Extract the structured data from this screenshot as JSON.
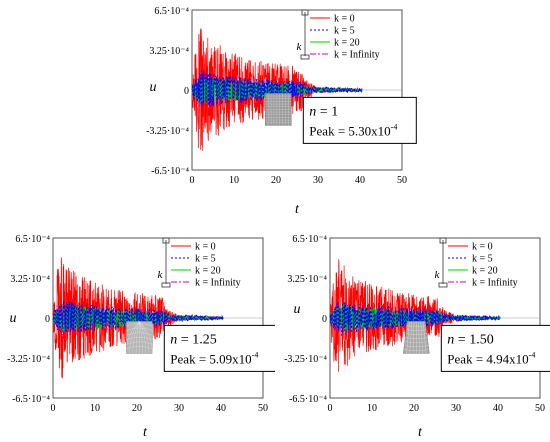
{
  "chart_data": [
    {
      "type": "line",
      "panel": "top",
      "ylabel": "u",
      "xlabel": "t",
      "xlim": [
        0,
        50
      ],
      "ylim": [
        -0.00065,
        0.00065
      ],
      "xticks": [
        "0",
        "10",
        "20",
        "30",
        "40",
        "50"
      ],
      "yticks": [
        "6.5·10⁻⁴",
        "3.25·10⁻⁴",
        "0",
        "-3.25·10⁻⁴",
        "-6.5·10⁻⁴"
      ],
      "legend": {
        "position": "top-right",
        "entries": [
          "k = 0",
          "k = 5",
          "k = 20",
          "k = Infinity"
        ]
      },
      "legend_tag": "k",
      "annotation": {
        "n_label": "n",
        "n_value": "= 1",
        "peak_text": "Peak = 5.30x10",
        "peak_exp": "-4"
      },
      "peak": 0.00053,
      "series": [
        {
          "name": "k = 0",
          "color": "#ff0000",
          "style": "solid",
          "envelope": [
            [
              0,
              8e-05
            ],
            [
              1,
              0.00042
            ],
            [
              2,
              0.00053
            ],
            [
              3,
              0.00046
            ],
            [
              5,
              0.0004
            ],
            [
              8,
              0.00034
            ],
            [
              12,
              0.00028
            ],
            [
              16,
              0.00024
            ],
            [
              20,
              0.00022
            ],
            [
              24,
              0.0002
            ],
            [
              26,
              0.00018
            ],
            [
              27,
              9e-05
            ],
            [
              30,
              2e-05
            ],
            [
              40,
              1e-05
            ]
          ]
        },
        {
          "name": "k = 5",
          "color": "#0000ff",
          "style": "dotted",
          "envelope": [
            [
              0,
              5e-05
            ],
            [
              2,
              0.00016
            ],
            [
              8,
              0.00012
            ],
            [
              16,
              9e-05
            ],
            [
              26,
              7e-05
            ],
            [
              28,
              3e-05
            ],
            [
              40,
              1.5e-05
            ]
          ]
        },
        {
          "name": "k = 20",
          "color": "#00cc00",
          "style": "solid",
          "envelope": [
            [
              0,
              4e-05
            ],
            [
              2,
              0.00012
            ],
            [
              8,
              9e-05
            ],
            [
              16,
              7e-05
            ],
            [
              26,
              5e-05
            ],
            [
              28,
              2e-05
            ],
            [
              40,
              1e-05
            ]
          ]
        },
        {
          "name": "k = Infinity",
          "color": "#cc00cc",
          "style": "dashdot",
          "envelope": [
            [
              0,
              4e-05
            ],
            [
              2,
              0.0001
            ],
            [
              8,
              8e-05
            ],
            [
              16,
              6e-05
            ],
            [
              26,
              5e-05
            ],
            [
              28,
              2e-05
            ],
            [
              40,
              1e-05
            ]
          ]
        }
      ]
    },
    {
      "type": "line",
      "panel": "bottom-left",
      "ylabel": "u",
      "xlabel": "t",
      "xlim": [
        0,
        50
      ],
      "ylim": [
        -0.00065,
        0.00065
      ],
      "xticks": [
        "0",
        "10",
        "20",
        "30",
        "40",
        "50"
      ],
      "yticks": [
        "6.5·10⁻⁴",
        "3.25·10⁻⁴",
        "0",
        "-3.25·10⁻⁴",
        "-6.5·10⁻⁴"
      ],
      "legend": {
        "position": "top-right",
        "entries": [
          "k = 0",
          "k = 5",
          "k = 20",
          "k = Infinity"
        ]
      },
      "legend_tag": "k",
      "annotation": {
        "n_label": "n",
        "n_value": "= 1.25",
        "peak_text": "Peak = 5.09x10",
        "peak_exp": "-4"
      },
      "peak": 0.000509,
      "series": [
        {
          "name": "k = 0",
          "color": "#ff0000",
          "style": "solid",
          "envelope": [
            [
              0,
              8e-05
            ],
            [
              1,
              0.0004
            ],
            [
              2,
              0.00051
            ],
            [
              3,
              0.00045
            ],
            [
              5,
              0.00038
            ],
            [
              8,
              0.00032
            ],
            [
              12,
              0.00027
            ],
            [
              16,
              0.00023
            ],
            [
              20,
              0.00021
            ],
            [
              24,
              0.00019
            ],
            [
              26,
              0.00017
            ],
            [
              27,
              8e-05
            ],
            [
              30,
              2e-05
            ],
            [
              40,
              1e-05
            ]
          ]
        },
        {
          "name": "k = 5",
          "color": "#0000ff",
          "style": "dotted",
          "envelope": [
            [
              0,
              5e-05
            ],
            [
              2,
              0.00015
            ],
            [
              8,
              0.00011
            ],
            [
              16,
              9e-05
            ],
            [
              26,
              7e-05
            ],
            [
              28,
              3e-05
            ],
            [
              40,
              1.5e-05
            ]
          ]
        },
        {
          "name": "k = 20",
          "color": "#00cc00",
          "style": "solid",
          "envelope": [
            [
              0,
              4e-05
            ],
            [
              2,
              0.00012
            ],
            [
              8,
              9e-05
            ],
            [
              16,
              7e-05
            ],
            [
              26,
              5e-05
            ],
            [
              28,
              2e-05
            ],
            [
              40,
              1e-05
            ]
          ]
        },
        {
          "name": "k = Infinity",
          "color": "#cc00cc",
          "style": "dashdot",
          "envelope": [
            [
              0,
              4e-05
            ],
            [
              2,
              0.0001
            ],
            [
              8,
              8e-05
            ],
            [
              16,
              6e-05
            ],
            [
              26,
              5e-05
            ],
            [
              28,
              2e-05
            ],
            [
              40,
              1e-05
            ]
          ]
        }
      ]
    },
    {
      "type": "line",
      "panel": "bottom-right",
      "ylabel": "u",
      "xlabel": "t",
      "xlim": [
        0,
        50
      ],
      "ylim": [
        -0.00065,
        0.00065
      ],
      "xticks": [
        "0",
        "10",
        "20",
        "30",
        "40",
        "50"
      ],
      "yticks": [
        "6.5·10⁻⁴",
        "3.25·10⁻⁴",
        "0",
        "-3.25·10⁻⁴",
        "-6.5·10⁻⁴"
      ],
      "legend": {
        "position": "top-right",
        "entries": [
          "k = 0",
          "k = 5",
          "k = 20",
          "k = Infinity"
        ]
      },
      "legend_tag": "k",
      "annotation": {
        "n_label": "n",
        "n_value": "= 1.50",
        "peak_text": "Peak = 4.94x10",
        "peak_exp": "-4"
      },
      "peak": 0.000494,
      "series": [
        {
          "name": "k = 0",
          "color": "#ff0000",
          "style": "solid",
          "envelope": [
            [
              0,
              8e-05
            ],
            [
              1,
              0.00039
            ],
            [
              2,
              0.00049
            ],
            [
              3,
              0.00044
            ],
            [
              5,
              0.00037
            ],
            [
              8,
              0.00031
            ],
            [
              12,
              0.00026
            ],
            [
              16,
              0.00022
            ],
            [
              20,
              0.0002
            ],
            [
              24,
              0.00018
            ],
            [
              26,
              0.00016
            ],
            [
              27,
              8e-05
            ],
            [
              30,
              2e-05
            ],
            [
              40,
              1e-05
            ]
          ]
        },
        {
          "name": "k = 5",
          "color": "#0000ff",
          "style": "dotted",
          "envelope": [
            [
              0,
              5e-05
            ],
            [
              2,
              0.00015
            ],
            [
              8,
              0.00011
            ],
            [
              16,
              9e-05
            ],
            [
              26,
              7e-05
            ],
            [
              28,
              3e-05
            ],
            [
              40,
              1.5e-05
            ]
          ]
        },
        {
          "name": "k = 20",
          "color": "#00cc00",
          "style": "solid",
          "envelope": [
            [
              0,
              4e-05
            ],
            [
              2,
              0.00012
            ],
            [
              8,
              9e-05
            ],
            [
              16,
              7e-05
            ],
            [
              26,
              5e-05
            ],
            [
              28,
              2e-05
            ],
            [
              40,
              1e-05
            ]
          ]
        },
        {
          "name": "k = Infinity",
          "color": "#cc00cc",
          "style": "dashdot",
          "envelope": [
            [
              0,
              4e-05
            ],
            [
              2,
              0.0001
            ],
            [
              8,
              8e-05
            ],
            [
              16,
              6e-05
            ],
            [
              26,
              5e-05
            ],
            [
              28,
              2e-05
            ],
            [
              40,
              1e-05
            ]
          ]
        }
      ]
    }
  ]
}
